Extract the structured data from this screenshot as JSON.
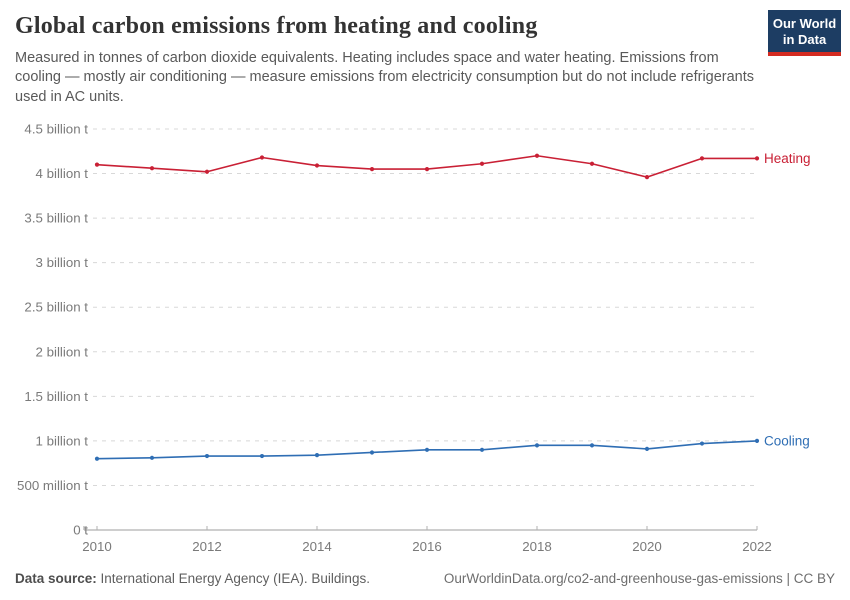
{
  "header": {
    "title": "Global carbon emissions from heating and cooling",
    "subtitle": "Measured in tonnes of carbon dioxide equivalents. Heating includes space and water heating. Emissions from cooling — mostly air conditioning — measure emissions from electricity consumption but do not include refrigerants used in AC units.",
    "logo": {
      "line1": "Our World",
      "line2": "in Data",
      "bg_color": "#1d3d63",
      "accent_color": "#d42b21"
    }
  },
  "chart_data": {
    "type": "line",
    "x": [
      2010,
      2011,
      2012,
      2013,
      2014,
      2015,
      2016,
      2017,
      2018,
      2019,
      2020,
      2021,
      2022
    ],
    "series": [
      {
        "name": "Heating",
        "color": "#c92035",
        "values": [
          4.1,
          4.06,
          4.02,
          4.18,
          4.09,
          4.05,
          4.05,
          4.11,
          4.2,
          4.11,
          3.96,
          4.17,
          4.17
        ]
      },
      {
        "name": "Cooling",
        "color": "#2f6eb4",
        "values": [
          0.8,
          0.81,
          0.83,
          0.83,
          0.84,
          0.87,
          0.9,
          0.9,
          0.95,
          0.95,
          0.91,
          0.97,
          1.0
        ]
      }
    ],
    "value_unit_billion_t": true,
    "yticks": [
      {
        "value": 0,
        "label": "0 t"
      },
      {
        "value": 0.5,
        "label": "500 million t"
      },
      {
        "value": 1,
        "label": "1 billion t"
      },
      {
        "value": 1.5,
        "label": "1.5 billion t"
      },
      {
        "value": 2,
        "label": "2 billion t"
      },
      {
        "value": 2.5,
        "label": "2.5 billion t"
      },
      {
        "value": 3,
        "label": "3 billion t"
      },
      {
        "value": 3.5,
        "label": "3.5 billion t"
      },
      {
        "value": 4,
        "label": "4 billion t"
      },
      {
        "value": 4.5,
        "label": "4.5 billion t"
      }
    ],
    "xticks": [
      2010,
      2012,
      2014,
      2016,
      2018,
      2020,
      2022
    ],
    "ylim": [
      0,
      4.5
    ],
    "xlim": [
      2010,
      2022
    ],
    "grid": "horizontal-dashed",
    "legend_position": "line-end-labels",
    "colors": {
      "gridline": "#d8d8d8",
      "axis": "#9e9e9e",
      "tick": "#b0b0b0",
      "tick_label": "#7a7a7a"
    }
  },
  "footer": {
    "data_source_label": "Data source:",
    "data_source_value": "International Energy Agency (IEA). Buildings.",
    "attribution": "OurWorldinData.org/co2-and-greenhouse-gas-emissions | CC BY"
  }
}
